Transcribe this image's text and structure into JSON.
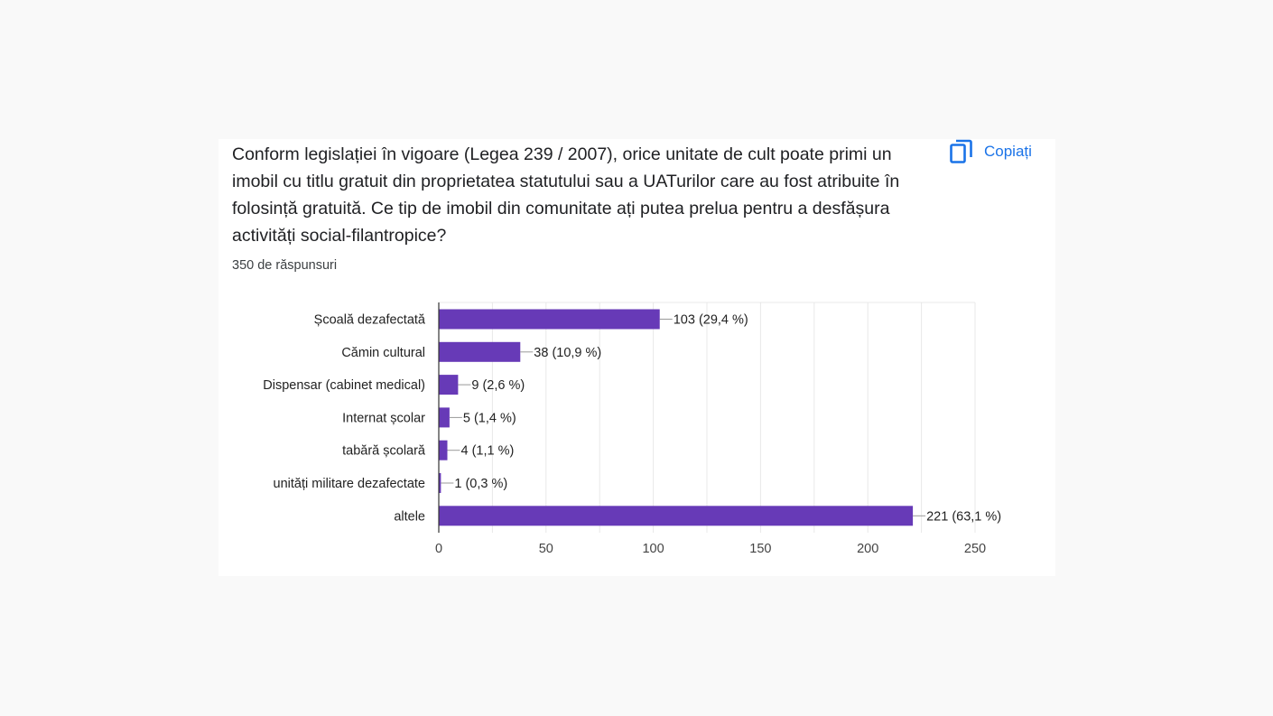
{
  "question": {
    "text": "Conform legislației în vigoare (Legea 239 / 2007), orice unitate de cult poate primi un imobil cu titlu gratuit din proprietatea statutului sau a UATurilor care au fost atribuite în folosință gratuită. Ce tip de imobil din comunitate ați putea prelua pentru a desfășura activități social-filantropice?",
    "response_count": "350 de răspunsuri"
  },
  "copy_button": {
    "label": "Copiați",
    "icon": "copy-icon"
  },
  "colors": {
    "bar": "#673ab7",
    "accent": "#1a73e8",
    "grid": "#e8e8e8",
    "text": "#202124"
  },
  "chart_data": {
    "type": "bar",
    "orientation": "horizontal",
    "categories": [
      "Școală dezafectată",
      "Cămin cultural",
      "Dispensar (cabinet medical)",
      "Internat școlar",
      "tabără școlară",
      "unități militare dezafectate",
      "altele"
    ],
    "values": [
      103,
      38,
      9,
      5,
      4,
      1,
      221
    ],
    "data_labels": [
      "103 (29,4 %)",
      "38 (10,9 %)",
      "9 (2,6 %)",
      "5 (1,4 %)",
      "4 (1,1 %)",
      "1 (0,3 %)",
      "221 (63,1 %)"
    ],
    "xlim": [
      0,
      250
    ],
    "xticks": [
      0,
      50,
      100,
      150,
      200,
      250
    ],
    "title": "",
    "xlabel": "",
    "ylabel": "",
    "grid": true
  }
}
